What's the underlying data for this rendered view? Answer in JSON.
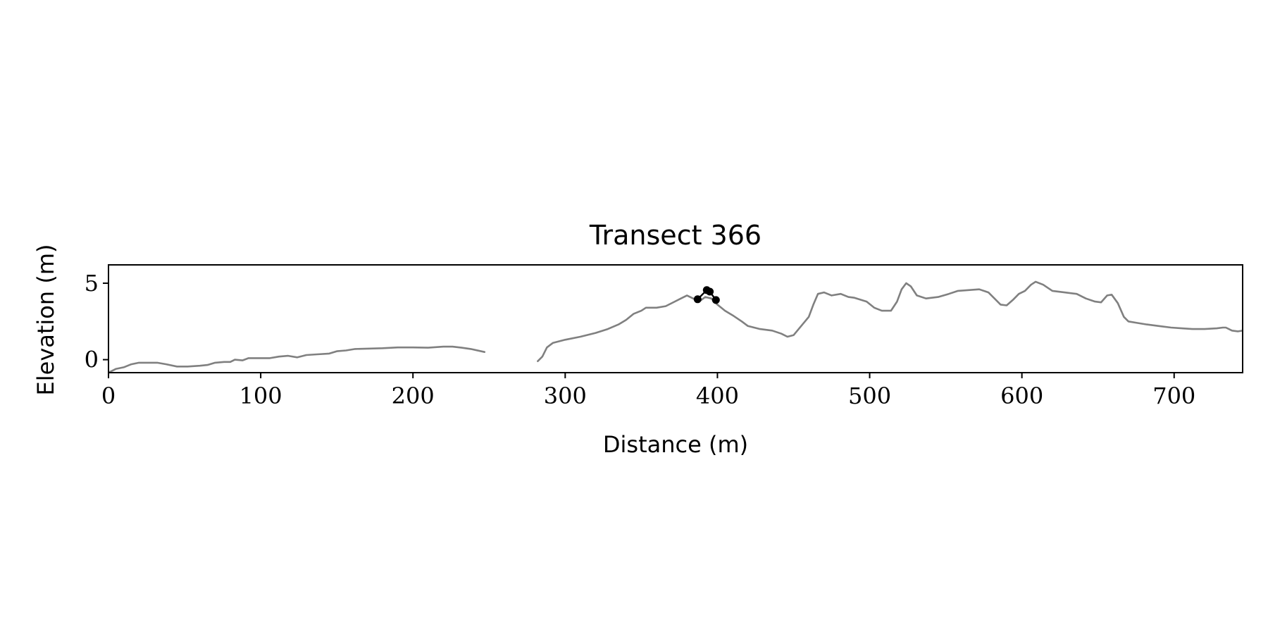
{
  "chart_data": {
    "type": "line",
    "title": "Transect 366",
    "xlabel": "Distance (m)",
    "ylabel": "Elevation (m)",
    "xlim": [
      0,
      745
    ],
    "ylim": [
      -0.85,
      6.2
    ],
    "xticks": [
      0,
      100,
      200,
      300,
      400,
      500,
      600,
      700
    ],
    "yticks": [
      0,
      5
    ],
    "grid": false,
    "colors": {
      "profile": "#808080",
      "markers": "#000000",
      "axes": "#000000"
    },
    "series": [
      {
        "kind": "profile",
        "segments": [
          [
            [
              0,
              -0.85
            ],
            [
              5,
              -0.6
            ],
            [
              10,
              -0.5
            ],
            [
              15,
              -0.3
            ],
            [
              20,
              -0.2
            ],
            [
              25,
              -0.2
            ],
            [
              32,
              -0.2
            ],
            [
              38,
              -0.3
            ],
            [
              45,
              -0.45
            ],
            [
              52,
              -0.45
            ],
            [
              60,
              -0.4
            ],
            [
              65,
              -0.35
            ],
            [
              70,
              -0.2
            ],
            [
              76,
              -0.15
            ],
            [
              80,
              -0.15
            ],
            [
              83,
              0.0
            ],
            [
              88,
              -0.05
            ],
            [
              92,
              0.1
            ],
            [
              100,
              0.1
            ],
            [
              106,
              0.1
            ],
            [
              112,
              0.2
            ],
            [
              118,
              0.25
            ],
            [
              124,
              0.15
            ],
            [
              130,
              0.3
            ],
            [
              137,
              0.35
            ],
            [
              145,
              0.4
            ],
            [
              150,
              0.55
            ],
            [
              156,
              0.6
            ],
            [
              162,
              0.7
            ],
            [
              170,
              0.72
            ],
            [
              180,
              0.75
            ],
            [
              190,
              0.8
            ],
            [
              200,
              0.8
            ],
            [
              210,
              0.78
            ],
            [
              220,
              0.85
            ],
            [
              226,
              0.85
            ],
            [
              232,
              0.78
            ],
            [
              238,
              0.7
            ],
            [
              247,
              0.5
            ]
          ],
          [
            [
              282,
              -0.1
            ],
            [
              285,
              0.2
            ],
            [
              288,
              0.8
            ],
            [
              292,
              1.1
            ],
            [
              300,
              1.3
            ],
            [
              310,
              1.5
            ],
            [
              320,
              1.75
            ],
            [
              328,
              2.0
            ],
            [
              335,
              2.3
            ],
            [
              340,
              2.6
            ],
            [
              345,
              3.0
            ],
            [
              350,
              3.2
            ],
            [
              353,
              3.4
            ],
            [
              360,
              3.4
            ],
            [
              366,
              3.5
            ],
            [
              372,
              3.8
            ],
            [
              376,
              4.0
            ],
            [
              380,
              4.2
            ],
            [
              384,
              4.0
            ],
            [
              388,
              3.8
            ],
            [
              392,
              4.1
            ],
            [
              396,
              4.0
            ],
            [
              400,
              3.6
            ],
            [
              405,
              3.2
            ],
            [
              410,
              2.9
            ],
            [
              416,
              2.5
            ],
            [
              420,
              2.2
            ],
            [
              428,
              2.0
            ],
            [
              436,
              1.9
            ],
            [
              442,
              1.7
            ],
            [
              446,
              1.5
            ],
            [
              450,
              1.6
            ],
            [
              455,
              2.2
            ],
            [
              460,
              2.8
            ],
            [
              463,
              3.6
            ],
            [
              466,
              4.3
            ],
            [
              470,
              4.4
            ],
            [
              475,
              4.2
            ],
            [
              481,
              4.3
            ],
            [
              486,
              4.1
            ],
            [
              490,
              4.05
            ],
            [
              498,
              3.8
            ],
            [
              503,
              3.4
            ],
            [
              508,
              3.2
            ],
            [
              514,
              3.2
            ],
            [
              518,
              3.8
            ],
            [
              521,
              4.6
            ],
            [
              524,
              5.0
            ],
            [
              527,
              4.8
            ],
            [
              531,
              4.2
            ],
            [
              537,
              4.0
            ],
            [
              545,
              4.1
            ],
            [
              552,
              4.3
            ],
            [
              558,
              4.5
            ],
            [
              565,
              4.55
            ],
            [
              572,
              4.6
            ],
            [
              578,
              4.4
            ],
            [
              582,
              4.0
            ],
            [
              586,
              3.6
            ],
            [
              590,
              3.55
            ],
            [
              594,
              3.9
            ],
            [
              598,
              4.3
            ],
            [
              602,
              4.5
            ],
            [
              606,
              4.9
            ],
            [
              609,
              5.1
            ],
            [
              614,
              4.9
            ],
            [
              620,
              4.5
            ],
            [
              628,
              4.4
            ],
            [
              636,
              4.3
            ],
            [
              642,
              4.0
            ],
            [
              648,
              3.8
            ],
            [
              652,
              3.75
            ],
            [
              656,
              4.2
            ],
            [
              659,
              4.25
            ],
            [
              663,
              3.7
            ],
            [
              667,
              2.8
            ],
            [
              670,
              2.5
            ],
            [
              676,
              2.4
            ],
            [
              682,
              2.3
            ],
            [
              690,
              2.2
            ],
            [
              698,
              2.1
            ],
            [
              705,
              2.05
            ],
            [
              712,
              2.0
            ],
            [
              720,
              2.0
            ],
            [
              728,
              2.05
            ],
            [
              732,
              2.1
            ],
            [
              734,
              2.1
            ],
            [
              738,
              1.9
            ],
            [
              742,
              1.85
            ],
            [
              745,
              1.9
            ]
          ]
        ]
      },
      {
        "kind": "markers",
        "points": [
          [
            387,
            3.95
          ],
          [
            393,
            4.55
          ],
          [
            395,
            4.45
          ],
          [
            399,
            3.9
          ]
        ]
      }
    ]
  }
}
